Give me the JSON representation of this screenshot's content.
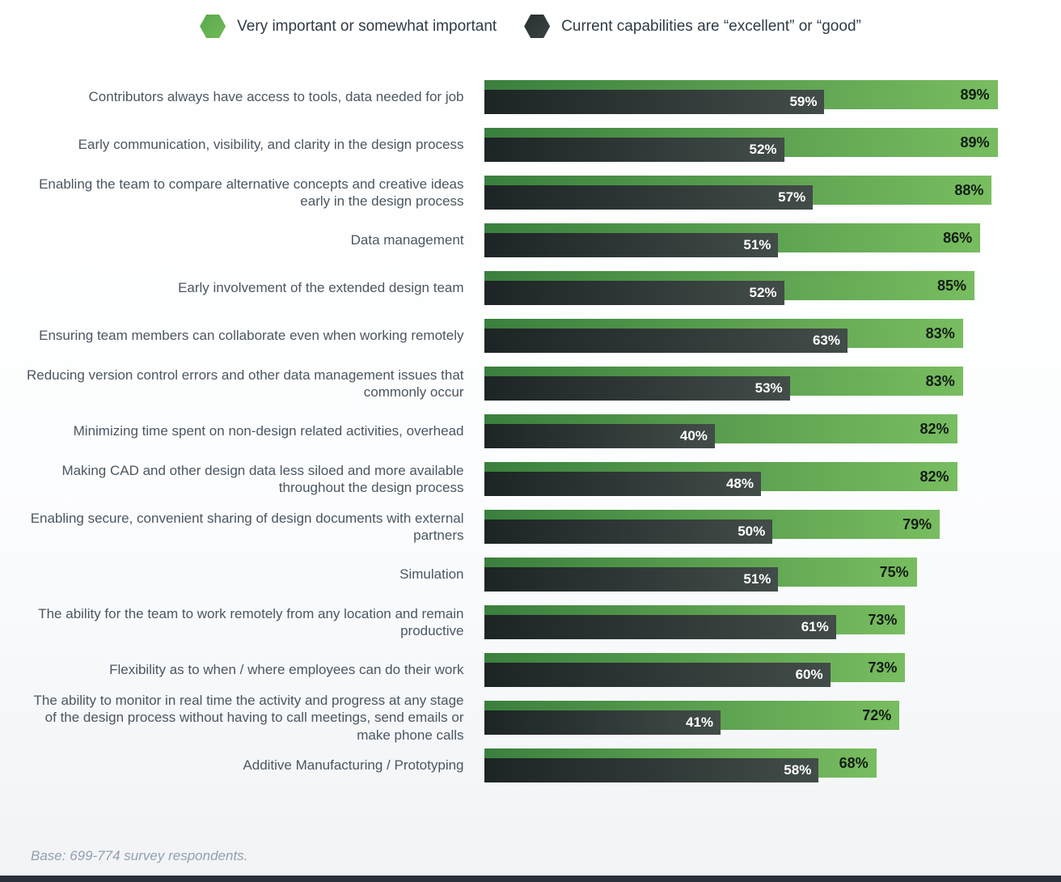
{
  "legend": [
    {
      "label": "Very important or somewhat important",
      "icon": "hexagon-icon",
      "color": "#64b44d"
    },
    {
      "label": "Current capabilities are “excellent” or “good”",
      "icon": "hexagon-icon",
      "color": "#333c3d"
    }
  ],
  "chart_data": {
    "type": "bar",
    "orientation": "horizontal",
    "categories": [
      "Contributors always have access to tools, data needed for job",
      "Early communication, visibility, and clarity in the design process",
      "Enabling the team to compare alternative concepts and creative ideas early in the design process",
      "Data management",
      "Early involvement of the extended design team",
      "Ensuring team members can collaborate even when working remotely",
      "Reducing version control errors and other data management issues that commonly occur",
      "Minimizing time spent on non-design related activities, overhead",
      "Making CAD and other design data less siloed and more available throughout the design process",
      "Enabling secure, convenient sharing of design documents with external partners",
      "Simulation",
      "The ability for the team to work remotely from any location and remain productive",
      "Flexibility as to when / where employees can do their work",
      "The ability to monitor in real time the activity and progress at any stage of the design process without having to call meetings, send emails or make phone calls",
      "Additive Manufacturing / Prototyping"
    ],
    "series": [
      {
        "name": "Very important or somewhat important",
        "values": [
          89,
          89,
          88,
          86,
          85,
          83,
          83,
          82,
          82,
          79,
          75,
          73,
          73,
          72,
          68
        ]
      },
      {
        "name": "Current capabilities are “excellent” or “good”",
        "values": [
          59,
          52,
          57,
          51,
          52,
          63,
          53,
          40,
          48,
          50,
          51,
          61,
          60,
          41,
          58
        ]
      }
    ],
    "value_suffix": "%",
    "xlim": [
      0,
      100
    ],
    "grid": false,
    "legend_position": "top"
  },
  "footer": {
    "note": "Base: 699-774 survey respondents."
  },
  "colors": {
    "bar_green_start": "#3a7f3d",
    "bar_green_end": "#78bd60",
    "bar_dark_start": "#1d2425",
    "bar_dark_end": "#424c48",
    "label_text": "#4a5761",
    "footnote_text": "#93a0ad",
    "bottom_strip": "#2a313a"
  }
}
